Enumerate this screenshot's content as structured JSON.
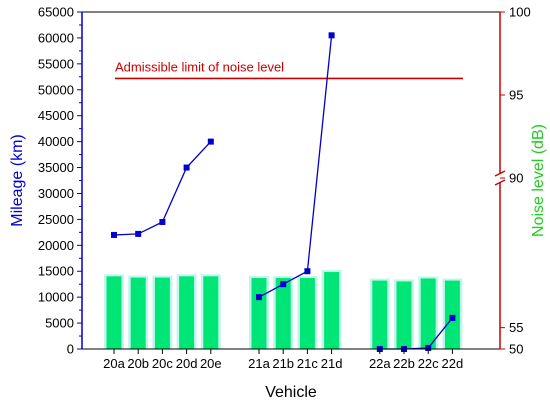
{
  "chart_data": {
    "type": "bar",
    "xlabel": "Vehicle",
    "ylabel_left": "Mileage (km)",
    "ylabel_right": "Noise level (dB)",
    "categories": [
      "20a",
      "20b",
      "20c",
      "20d",
      "20e",
      "21a",
      "21b",
      "21c",
      "21d",
      "22a",
      "22b",
      "22c",
      "22d"
    ],
    "groups": [
      [
        "20a",
        "20b",
        "20c",
        "20d",
        "20e"
      ],
      [
        "21a",
        "21b",
        "21c",
        "21d"
      ],
      [
        "22a",
        "22b",
        "22c",
        "22d"
      ]
    ],
    "left_axis": {
      "ylim": [
        0,
        65000
      ],
      "ticks": [
        0,
        5000,
        10000,
        15000,
        20000,
        25000,
        30000,
        35000,
        40000,
        45000,
        50000,
        55000,
        60000,
        65000
      ],
      "color": "#0000cc"
    },
    "right_axis": {
      "broken": true,
      "lower_range": [
        50,
        90
      ],
      "upper_range": [
        90,
        100
      ],
      "ticks": [
        50,
        55,
        90,
        95,
        100
      ],
      "color": "#cc0000"
    },
    "series": [
      {
        "kind": "bar",
        "axis": "right",
        "color": "#00e676",
        "values": [
          67.0,
          66.7,
          66.7,
          67.0,
          67.0,
          66.6,
          66.6,
          66.6,
          68.0,
          66.0,
          65.8,
          66.5,
          66.0
        ]
      },
      {
        "kind": "line",
        "axis": "left",
        "color": "#0000cc",
        "marker": "square",
        "values": [
          22000,
          22200,
          24500,
          35000,
          40000,
          10000,
          12500,
          15000,
          60500,
          0,
          0,
          200,
          6000
        ]
      }
    ],
    "annotations": [
      {
        "text": "Admissible limit of noise level",
        "value": 96.0,
        "axis": "right",
        "color": "#cc0000"
      }
    ],
    "grid": false,
    "legend": "none"
  }
}
